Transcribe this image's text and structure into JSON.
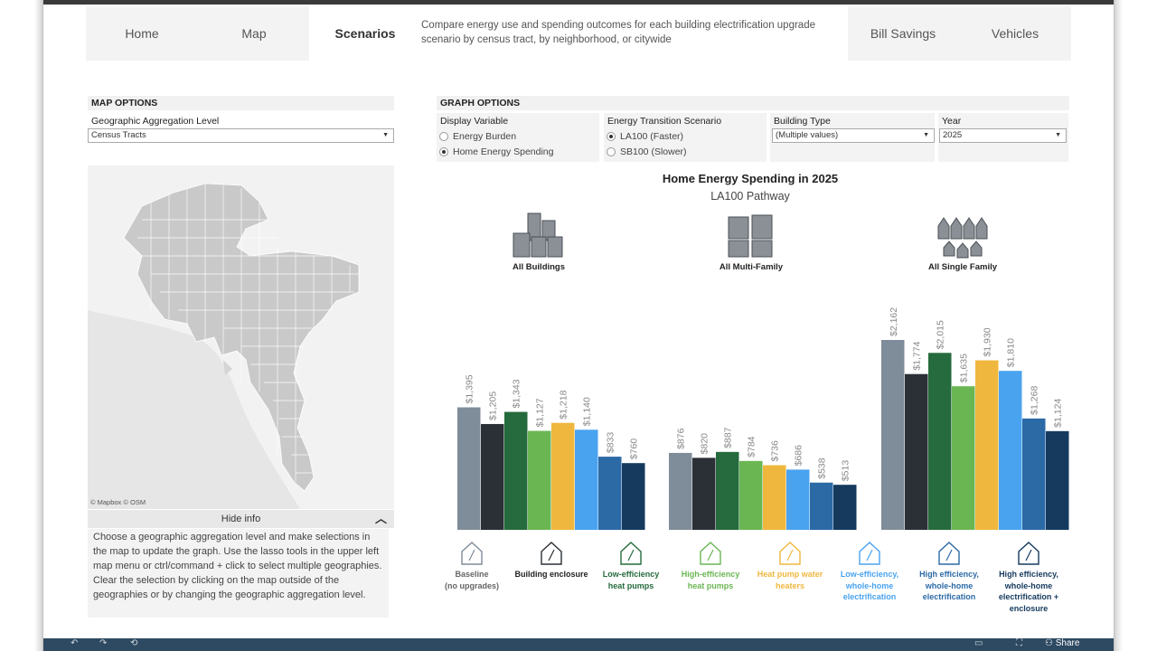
{
  "nav": {
    "tabs": [
      {
        "label": "Home"
      },
      {
        "label": "Map"
      },
      {
        "label": "Scenarios"
      },
      {
        "label": "Bill Savings"
      },
      {
        "label": "Vehicles"
      }
    ],
    "description": "Compare energy use and spending outcomes for each building electrification upgrade scenario by census tract, by neighborhood, or citywide"
  },
  "map_options": {
    "header": "MAP OPTIONS",
    "geo_label": "Geographic Aggregation Level",
    "geo_value": "Census Tracts",
    "credit": "© Mapbox  © OSM",
    "hide_info": "Hide info",
    "info_text": "Choose a geographic aggregation level and make selections in the map to update the graph. Use the lasso tools in the upper left map menu or ctrl/command + click to select multiple geographies. Clear the selection by clicking on the map outside of the geographies or by changing the geographic aggregation level."
  },
  "graph_options": {
    "header": "GRAPH OPTIONS",
    "display_variable": {
      "label": "Display Variable",
      "options": [
        "Energy Burden",
        "Home Energy Spending"
      ],
      "selected": 1
    },
    "scenario": {
      "label": "Energy Transition Scenario",
      "options": [
        "LA100 (Faster)",
        "SB100 (Slower)"
      ],
      "selected": 0
    },
    "building_type": {
      "label": "Building Type",
      "value": "(Multiple values)"
    },
    "year": {
      "label": "Year",
      "value": "2025"
    }
  },
  "chart_data": {
    "type": "bar",
    "title": "Home Energy Spending in 2025",
    "subtitle": "LA100 Pathway",
    "groups": [
      "All Buildings",
      "All Multi-Family",
      "All Single Family"
    ],
    "series": [
      {
        "name": "Baseline (no upgrades)",
        "color": "#7f8c99",
        "values": [
          1395,
          876,
          2162
        ]
      },
      {
        "name": "Building enclosure",
        "color": "#2b3036",
        "values": [
          1205,
          820,
          1774
        ]
      },
      {
        "name": "Low-efficiency heat pumps",
        "color": "#256b3d",
        "values": [
          1343,
          887,
          2015
        ]
      },
      {
        "name": "High-efficiency heat pumps",
        "color": "#6ab653",
        "values": [
          1127,
          784,
          1635
        ]
      },
      {
        "name": "Heat pump water heaters",
        "color": "#f0b73e",
        "values": [
          1218,
          736,
          1930
        ]
      },
      {
        "name": "Low-efficiency, whole-home electrification",
        "color": "#4aa3ef",
        "values": [
          1140,
          686,
          1810
        ]
      },
      {
        "name": "High efficiency, whole-home electrification",
        "color": "#2c6aa6",
        "values": [
          833,
          538,
          1268
        ]
      },
      {
        "name": "High efficiency, whole-home electrification + enclosure",
        "color": "#153a5e",
        "values": [
          760,
          513,
          1124
        ]
      }
    ],
    "labels": [
      [
        "$1,395",
        "$1,205",
        "$1,343",
        "$1,127",
        "$1,218",
        "$1,140",
        "$833",
        "$760"
      ],
      [
        "$876",
        "$820",
        "$887",
        "$784",
        "$736",
        "$686",
        "$538",
        "$513"
      ],
      [
        "$2,162",
        "$1,774",
        "$2,015",
        "$1,635",
        "$1,930",
        "$1,810",
        "$1,268",
        "$1,124"
      ]
    ],
    "legend": [
      {
        "line1": "Baseline",
        "line2": "(no upgrades)",
        "line3": "",
        "line4": "",
        "color": "#7f8c99"
      },
      {
        "line1": "Building enclosure",
        "line2": "",
        "line3": "",
        "line4": "",
        "color": "#2b3036"
      },
      {
        "line1": "Low-efficiency",
        "line2": "heat pumps",
        "line3": "",
        "line4": "",
        "color": "#256b3d"
      },
      {
        "line1": "High-efficiency",
        "line2": "heat pumps",
        "line3": "",
        "line4": "",
        "color": "#6ab653"
      },
      {
        "line1": "Heat pump water",
        "line2": "heaters",
        "line3": "",
        "line4": "",
        "color": "#f0b73e"
      },
      {
        "line1": "Low-efficiency,",
        "line2": "whole-home",
        "line3": "electrification",
        "line4": "",
        "color": "#4aa3ef"
      },
      {
        "line1": "High efficiency,",
        "line2": "whole-home",
        "line3": "electrification",
        "line4": "",
        "color": "#2c6aa6"
      },
      {
        "line1": "High efficiency,",
        "line2": "whole-home",
        "line3": "electrification +",
        "line4": "enclosure",
        "color": "#153a5e"
      }
    ]
  },
  "toolbar": {
    "share": "Share"
  }
}
